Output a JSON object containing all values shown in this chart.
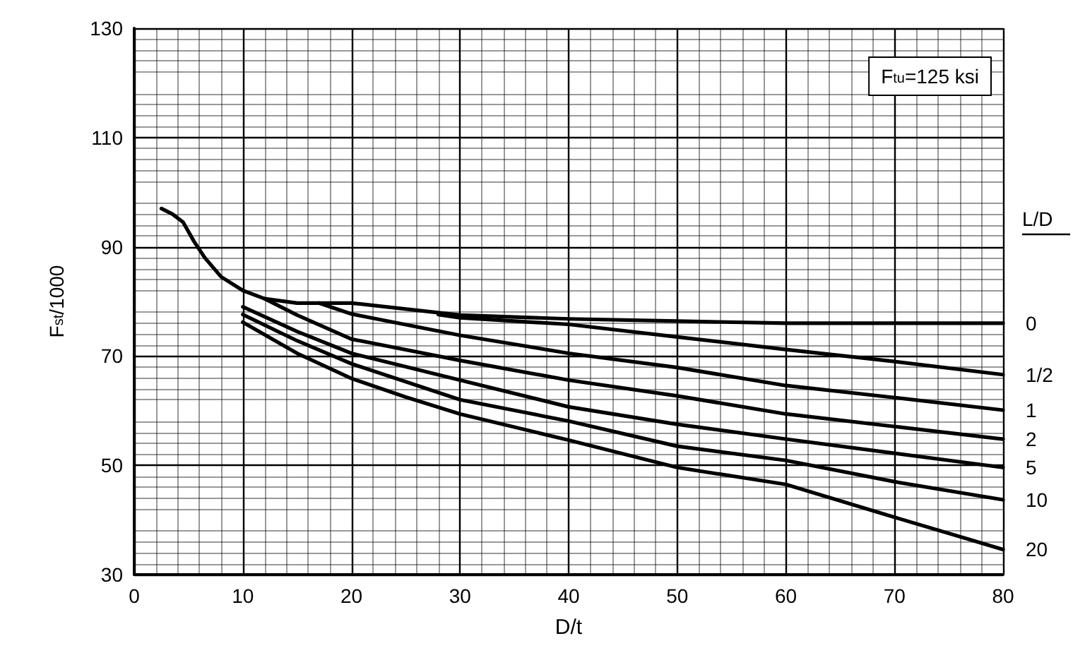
{
  "chart_data": {
    "type": "line",
    "xlabel": "D/t",
    "ylabel": "F$_{st}$/1000",
    "legend_title": "L/D",
    "annotations": [
      "F$_{tu}$=125 ksi"
    ],
    "xlim": [
      0,
      80
    ],
    "xticks": [
      0,
      10,
      20,
      30,
      40,
      50,
      60,
      70,
      80
    ],
    "ylim": [
      30,
      130
    ],
    "yticks": [
      30,
      50,
      70,
      90,
      110,
      130
    ],
    "grid": true,
    "marker": "none",
    "line_style": "solid",
    "legend": false,
    "series": [
      {
        "name": "0",
        "color": "#000000",
        "x": [
          2.5,
          3.5,
          4.5,
          5.5,
          6.5,
          8,
          10,
          12,
          15,
          20,
          30,
          40,
          50,
          60,
          70,
          80
        ],
        "values": [
          97,
          96,
          94.5,
          91,
          88,
          84.5,
          82,
          80.5,
          79.7,
          79.7,
          77.5,
          76.8,
          76.4,
          76,
          76,
          76
        ]
      },
      {
        "name": "1/2",
        "color": "#000000",
        "x": [
          28,
          30,
          40,
          50,
          60,
          70,
          80
        ],
        "values": [
          77.6,
          77,
          75.8,
          73.5,
          71.2,
          69,
          66.6
        ]
      },
      {
        "name": "1",
        "color": "#000000",
        "x": [
          17,
          20,
          30,
          40,
          50,
          60,
          70,
          80
        ],
        "values": [
          79.7,
          77.7,
          73.8,
          70.5,
          67.9,
          64.6,
          62.4,
          60.1
        ]
      },
      {
        "name": "2",
        "color": "#000000",
        "x": [
          12,
          15,
          20,
          30,
          40,
          50,
          60,
          70,
          80
        ],
        "values": [
          80.5,
          77.5,
          73.1,
          69.2,
          65.6,
          62.7,
          59.4,
          57.1,
          54.8
        ]
      },
      {
        "name": "5",
        "color": "#000000",
        "x": [
          10,
          15,
          20,
          30,
          40,
          50,
          60,
          70,
          80
        ],
        "values": [
          79,
          74.5,
          70.5,
          65.6,
          60.7,
          57.5,
          54.8,
          52.2,
          49.6
        ]
      },
      {
        "name": "10",
        "color": "#000000",
        "x": [
          10,
          15,
          20,
          30,
          40,
          50,
          60,
          70,
          80
        ],
        "values": [
          77.6,
          72.8,
          68.6,
          62,
          58.1,
          53.5,
          50.9,
          47,
          43.7
        ]
      },
      {
        "name": "20",
        "color": "#000000",
        "x": [
          10,
          15,
          20,
          25,
          30,
          40,
          50,
          60,
          70,
          80
        ],
        "values": [
          76.2,
          70.5,
          65.9,
          62.5,
          59.4,
          54.6,
          49.6,
          46.5,
          40.5,
          34.6
        ]
      }
    ]
  }
}
